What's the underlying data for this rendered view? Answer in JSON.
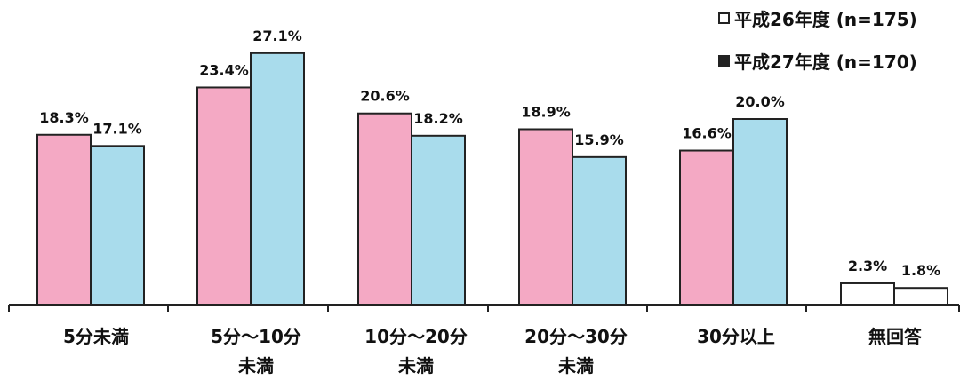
{
  "chart_data": {
    "type": "bar",
    "categories": [
      "5分未満",
      "5分～10分\n未満",
      "10分～20分\n未満",
      "20分～30分\n未満",
      "30分以上",
      "無回答"
    ],
    "series": [
      {
        "name": "平成26年度 (n=175)",
        "values": [
          18.3,
          23.4,
          20.6,
          18.9,
          16.6,
          2.3
        ],
        "labels": [
          "18.3%",
          "23.4%",
          "20.6%",
          "18.9%",
          "16.6%",
          "2.3%"
        ]
      },
      {
        "name": "平成27年度 (n=170)",
        "values": [
          17.1,
          27.1,
          18.2,
          15.9,
          20.0,
          1.8
        ],
        "labels": [
          "17.1%",
          "27.1%",
          "18.2%",
          "15.9%",
          "20.0%",
          "1.8%"
        ]
      }
    ],
    "ylim": [
      0,
      30
    ],
    "legend_position": "top-right",
    "colors": {
      "series1": "#f4a9c4",
      "series2": "#a9dcec",
      "no_answer": "#ffffff",
      "outline": "#222222",
      "axis": "#222222"
    }
  }
}
